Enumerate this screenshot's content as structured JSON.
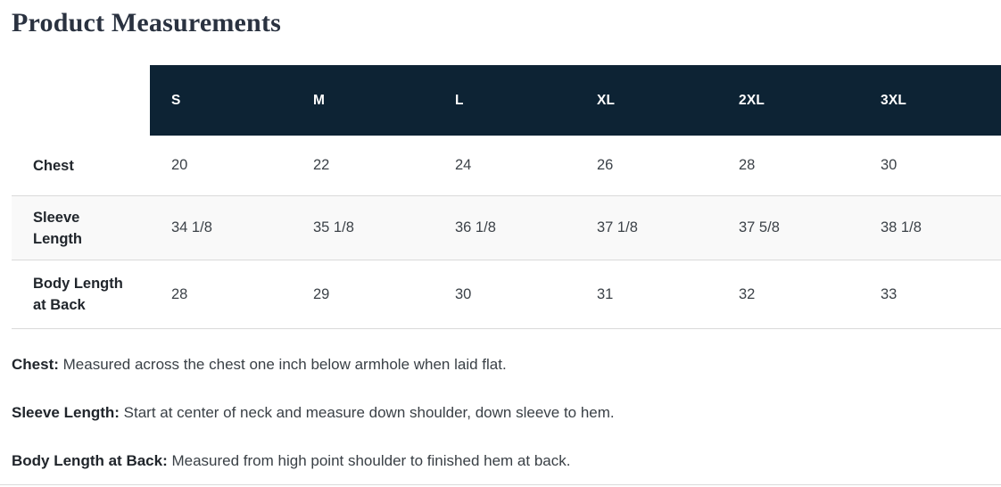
{
  "page": {
    "title": "Product Measurements"
  },
  "table": {
    "columns": [
      "S",
      "M",
      "L",
      "XL",
      "2XL",
      "3XL"
    ],
    "rows": [
      {
        "label": "Chest",
        "values": [
          "20",
          "22",
          "24",
          "26",
          "28",
          "30"
        ]
      },
      {
        "label": "Sleeve Length",
        "values": [
          "34 1/8",
          "35 1/8",
          "36 1/8",
          "37 1/8",
          "37 5/8",
          "38 1/8"
        ]
      },
      {
        "label": "Body Length at Back",
        "values": [
          "28",
          "29",
          "30",
          "31",
          "32",
          "33"
        ]
      }
    ]
  },
  "footnotes": [
    {
      "term": "Chest:",
      "description": "Measured across the chest one inch below armhole when laid flat."
    },
    {
      "term": "Sleeve Length:",
      "description": "Start at center of neck and measure down shoulder, down sleeve to hem."
    },
    {
      "term": "Body Length at Back:",
      "description": "Measured from high point shoulder to finished hem at back."
    }
  ],
  "colors": {
    "header_bg": "#0d2334",
    "header_text": "#ffffff",
    "stripe_bg": "#f9f9f9",
    "border": "#dadada",
    "title_text": "#2a3240",
    "label_text": "#21262c",
    "value_text": "#3c4248"
  }
}
